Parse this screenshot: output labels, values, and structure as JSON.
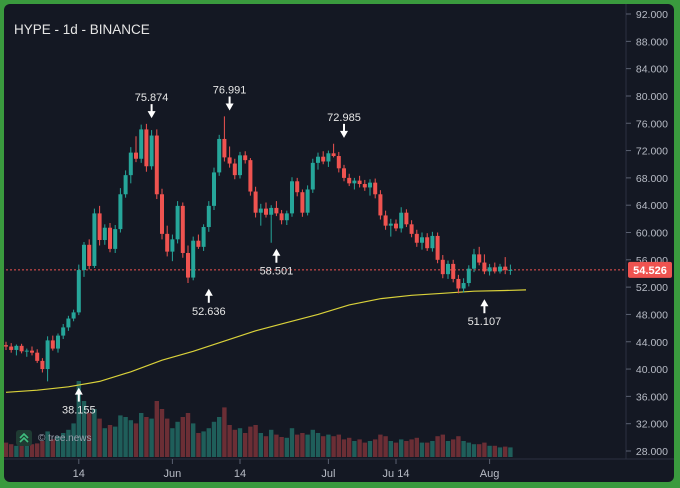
{
  "header": {
    "title": "HYPE - 1d - BINANCE"
  },
  "watermark": {
    "text": "© tree.news",
    "icon": "tree-news-logo-icon"
  },
  "colors": {
    "background": "#141823",
    "up": "#26a69a",
    "down": "#ef5350",
    "ma": "#d9d13a",
    "price_line": "#ef5350",
    "label_text": "#e6e6e6"
  },
  "chart_data": {
    "type": "candlestick",
    "title": "HYPE - 1d - BINANCE",
    "y_axis": {
      "min": 28,
      "max": 92,
      "ticks": [
        "92.000",
        "88.000",
        "84.000",
        "80.000",
        "76.000",
        "72.000",
        "68.000",
        "64.000",
        "60.000",
        "56.000",
        "52.000",
        "48.000",
        "44.000",
        "40.000",
        "36.000",
        "32.000",
        "28.000"
      ],
      "tick_values": [
        92,
        88,
        84,
        80,
        76,
        72,
        68,
        64,
        60,
        56,
        52,
        48,
        44,
        40,
        36,
        32,
        28
      ]
    },
    "x_axis": {
      "ticks": [
        {
          "label": "14",
          "day": 14
        },
        {
          "label": "Jun",
          "day": 32
        },
        {
          "label": "14",
          "day": 45
        },
        {
          "label": "Jul",
          "day": 62
        },
        {
          "label": "Ju 14",
          "day": 75
        },
        {
          "label": "Aug",
          "day": 93
        }
      ]
    },
    "current_price": {
      "value": 54.526,
      "label": "54.526"
    },
    "annotations": [
      {
        "label": "38.155",
        "day": 14,
        "value": 38.155,
        "dir": "up"
      },
      {
        "label": "75.874",
        "day": 28,
        "value": 75.874,
        "dir": "down"
      },
      {
        "label": "52.636",
        "day": 39,
        "value": 52.636,
        "dir": "up"
      },
      {
        "label": "76.991",
        "day": 43,
        "value": 76.991,
        "dir": "down"
      },
      {
        "label": "58.501",
        "day": 52,
        "value": 58.501,
        "dir": "up"
      },
      {
        "label": "72.985",
        "day": 65,
        "value": 72.985,
        "dir": "down"
      },
      {
        "label": "51.107",
        "day": 92,
        "value": 51.107,
        "dir": "up"
      }
    ],
    "moving_average": [
      [
        0,
        36.6
      ],
      [
        6,
        36.9
      ],
      [
        12,
        37.4
      ],
      [
        18,
        38.2
      ],
      [
        24,
        39.6
      ],
      [
        30,
        41.3
      ],
      [
        36,
        42.6
      ],
      [
        42,
        44.1
      ],
      [
        48,
        45.6
      ],
      [
        54,
        46.8
      ],
      [
        60,
        48.0
      ],
      [
        66,
        49.4
      ],
      [
        72,
        50.3
      ],
      [
        78,
        50.8
      ],
      [
        84,
        51.1
      ],
      [
        90,
        51.4
      ],
      [
        96,
        51.5
      ],
      [
        100,
        51.6
      ]
    ],
    "candles": [
      [
        0,
        43.5,
        44.0,
        42.8,
        43.3,
        0.18
      ],
      [
        1,
        43.3,
        43.8,
        42.4,
        42.8,
        0.16
      ],
      [
        2,
        42.8,
        43.6,
        42.0,
        43.4,
        0.14
      ],
      [
        3,
        43.4,
        43.7,
        42.3,
        42.6,
        0.15
      ],
      [
        4,
        42.6,
        43.0,
        41.8,
        42.7,
        0.14
      ],
      [
        5,
        42.7,
        43.3,
        42.0,
        42.4,
        0.16
      ],
      [
        6,
        42.4,
        42.9,
        40.9,
        41.2,
        0.17
      ],
      [
        7,
        41.2,
        41.6,
        39.5,
        40.0,
        0.2
      ],
      [
        8,
        40.0,
        44.8,
        38.2,
        44.2,
        0.32
      ],
      [
        9,
        44.2,
        44.9,
        42.7,
        43.0,
        0.22
      ],
      [
        10,
        43.0,
        45.2,
        42.4,
        44.9,
        0.26
      ],
      [
        11,
        44.9,
        46.6,
        44.4,
        46.1,
        0.3
      ],
      [
        12,
        46.1,
        47.8,
        45.6,
        47.4,
        0.34
      ],
      [
        13,
        47.4,
        48.7,
        47.0,
        48.3,
        0.42
      ],
      [
        14,
        48.3,
        55.3,
        47.9,
        54.5,
        0.95
      ],
      [
        15,
        54.5,
        58.6,
        53.5,
        58.2,
        0.7
      ],
      [
        16,
        58.2,
        59.0,
        54.6,
        55.1,
        0.55
      ],
      [
        17,
        55.1,
        63.5,
        54.8,
        62.8,
        0.6
      ],
      [
        18,
        62.8,
        63.9,
        58.1,
        58.9,
        0.48
      ],
      [
        19,
        58.9,
        61.2,
        58.2,
        60.7,
        0.36
      ],
      [
        20,
        60.7,
        61.4,
        57.1,
        57.6,
        0.4
      ],
      [
        21,
        57.6,
        61.1,
        57.0,
        60.5,
        0.38
      ],
      [
        22,
        60.5,
        66.5,
        60.0,
        65.6,
        0.52
      ],
      [
        23,
        65.6,
        69.1,
        65.1,
        68.4,
        0.5
      ],
      [
        24,
        68.4,
        72.5,
        67.2,
        71.7,
        0.46
      ],
      [
        25,
        71.7,
        74.1,
        70.3,
        70.8,
        0.42
      ],
      [
        26,
        70.8,
        75.8,
        70.2,
        75.1,
        0.55
      ],
      [
        27,
        75.1,
        75.9,
        68.9,
        69.7,
        0.5
      ],
      [
        28,
        69.7,
        75.0,
        69.2,
        74.2,
        0.48
      ],
      [
        29,
        74.2,
        75.1,
        64.9,
        65.6,
        0.7
      ],
      [
        30,
        65.6,
        66.4,
        59.0,
        59.8,
        0.6
      ],
      [
        31,
        59.8,
        61.0,
        56.5,
        57.2,
        0.48
      ],
      [
        32,
        57.2,
        59.7,
        55.8,
        59.0,
        0.36
      ],
      [
        33,
        59.0,
        64.6,
        58.4,
        63.9,
        0.44
      ],
      [
        34,
        63.9,
        64.4,
        56.3,
        57.0,
        0.5
      ],
      [
        35,
        57.0,
        58.1,
        52.6,
        53.4,
        0.55
      ],
      [
        36,
        53.4,
        59.4,
        53.0,
        58.8,
        0.42
      ],
      [
        37,
        58.8,
        59.7,
        57.6,
        57.9,
        0.3
      ],
      [
        38,
        57.9,
        61.2,
        57.3,
        60.8,
        0.32
      ],
      [
        39,
        60.8,
        64.6,
        60.1,
        63.9,
        0.36
      ],
      [
        40,
        63.9,
        69.5,
        63.3,
        68.8,
        0.44
      ],
      [
        41,
        68.8,
        74.3,
        68.3,
        73.7,
        0.5
      ],
      [
        42,
        73.7,
        77.0,
        70.4,
        71.0,
        0.62
      ],
      [
        43,
        71.0,
        72.6,
        69.5,
        70.1,
        0.4
      ],
      [
        44,
        70.1,
        70.8,
        67.8,
        68.4,
        0.34
      ],
      [
        45,
        68.4,
        71.8,
        67.9,
        71.3,
        0.36
      ],
      [
        46,
        71.3,
        71.9,
        70.1,
        70.6,
        0.3
      ],
      [
        47,
        70.6,
        70.9,
        65.4,
        66.0,
        0.38
      ],
      [
        48,
        66.0,
        66.7,
        62.2,
        62.9,
        0.4
      ],
      [
        49,
        62.9,
        64.2,
        61.0,
        63.5,
        0.3
      ],
      [
        50,
        63.5,
        64.4,
        62.2,
        62.6,
        0.26
      ],
      [
        51,
        62.6,
        64.0,
        58.5,
        63.6,
        0.34
      ],
      [
        52,
        63.6,
        64.6,
        62.4,
        62.8,
        0.28
      ],
      [
        53,
        62.8,
        63.3,
        61.2,
        61.8,
        0.25
      ],
      [
        54,
        61.8,
        63.2,
        61.1,
        62.8,
        0.24
      ],
      [
        55,
        62.8,
        68.1,
        62.3,
        67.5,
        0.36
      ],
      [
        56,
        67.5,
        68.0,
        65.3,
        65.9,
        0.28
      ],
      [
        57,
        65.9,
        66.3,
        62.3,
        62.9,
        0.3
      ],
      [
        58,
        62.9,
        66.9,
        62.5,
        66.3,
        0.28
      ],
      [
        59,
        66.3,
        70.8,
        65.8,
        70.2,
        0.34
      ],
      [
        60,
        70.2,
        71.7,
        69.2,
        71.1,
        0.3
      ],
      [
        61,
        71.1,
        71.9,
        70.0,
        70.4,
        0.26
      ],
      [
        62,
        70.4,
        72.0,
        69.6,
        71.6,
        0.28
      ],
      [
        63,
        71.6,
        73.0,
        71.0,
        71.2,
        0.26
      ],
      [
        64,
        71.2,
        71.8,
        68.8,
        69.4,
        0.28
      ],
      [
        65,
        69.4,
        69.9,
        67.5,
        68.0,
        0.22
      ],
      [
        66,
        68.0,
        68.6,
        66.8,
        67.2,
        0.24
      ],
      [
        67,
        67.2,
        68.0,
        66.3,
        67.6,
        0.2
      ],
      [
        68,
        67.6,
        68.3,
        66.6,
        67.1,
        0.22
      ],
      [
        69,
        67.1,
        67.7,
        66.1,
        66.6,
        0.18
      ],
      [
        70,
        66.6,
        67.8,
        65.4,
        67.3,
        0.2
      ],
      [
        71,
        67.3,
        67.9,
        65.0,
        65.6,
        0.22
      ],
      [
        72,
        65.6,
        66.2,
        61.9,
        62.5,
        0.28
      ],
      [
        73,
        62.5,
        63.2,
        60.4,
        61.0,
        0.26
      ],
      [
        74,
        61.0,
        62.0,
        59.4,
        61.3,
        0.2
      ],
      [
        75,
        61.3,
        61.9,
        60.2,
        60.6,
        0.18
      ],
      [
        76,
        60.6,
        63.7,
        60.0,
        62.9,
        0.22
      ],
      [
        77,
        62.9,
        63.4,
        60.8,
        61.2,
        0.2
      ],
      [
        78,
        61.2,
        61.8,
        59.3,
        59.8,
        0.22
      ],
      [
        79,
        59.8,
        60.4,
        57.9,
        58.5,
        0.24
      ],
      [
        80,
        58.5,
        60.0,
        57.5,
        59.3,
        0.18
      ],
      [
        81,
        59.3,
        59.9,
        57.3,
        57.7,
        0.18
      ],
      [
        82,
        57.7,
        60.1,
        57.2,
        59.5,
        0.2
      ],
      [
        83,
        59.5,
        60.0,
        55.5,
        56.0,
        0.26
      ],
      [
        84,
        56.0,
        56.7,
        53.3,
        53.9,
        0.28
      ],
      [
        85,
        53.9,
        55.9,
        53.2,
        55.4,
        0.2
      ],
      [
        86,
        55.4,
        56.0,
        52.7,
        53.2,
        0.22
      ],
      [
        87,
        53.2,
        53.8,
        51.1,
        51.8,
        0.26
      ],
      [
        88,
        51.8,
        53.3,
        51.2,
        52.6,
        0.2
      ],
      [
        89,
        52.6,
        55.2,
        52.1,
        54.7,
        0.18
      ],
      [
        90,
        54.7,
        57.6,
        54.2,
        56.8,
        0.16
      ],
      [
        91,
        56.8,
        57.9,
        55.2,
        55.6,
        0.16
      ],
      [
        92,
        55.6,
        56.8,
        53.9,
        54.3,
        0.18
      ],
      [
        93,
        54.3,
        55.4,
        53.7,
        54.9,
        0.14
      ],
      [
        94,
        54.9,
        55.6,
        54.0,
        54.3,
        0.14
      ],
      [
        95,
        54.3,
        55.4,
        54.0,
        55.0,
        0.12
      ],
      [
        96,
        55.0,
        56.4,
        53.9,
        54.5,
        0.13
      ],
      [
        97,
        54.5,
        55.3,
        53.8,
        54.53,
        0.12
      ]
    ]
  }
}
